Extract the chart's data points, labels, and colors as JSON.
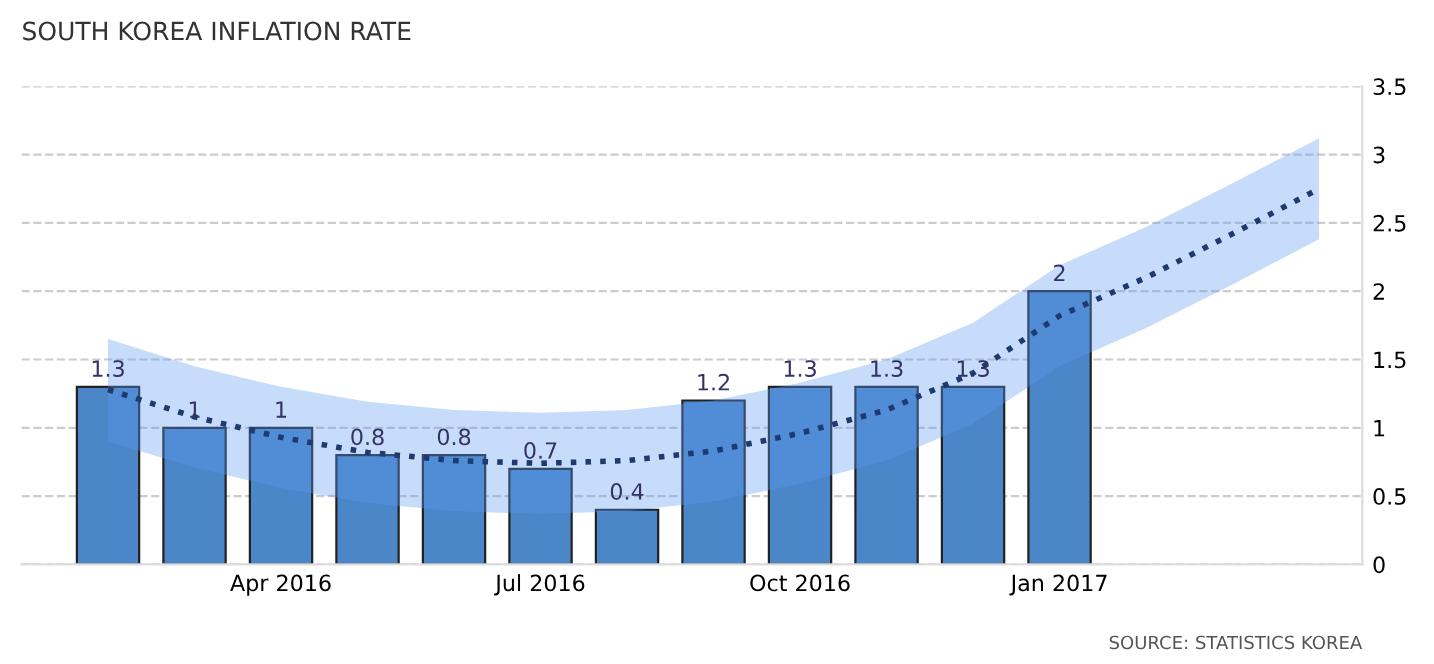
{
  "chart_data": {
    "type": "bar",
    "title": "SOUTH KOREA INFLATION RATE",
    "categories": [
      null,
      null,
      "Apr 2016",
      null,
      null,
      "Jul 2016",
      null,
      null,
      "Oct 2016",
      null,
      null,
      "Jan 2017",
      null,
      null,
      null
    ],
    "series": [
      {
        "color": "#4a86c8",
        "values": [
          1.3,
          1,
          1,
          0.8,
          0.8,
          0.7,
          0.4,
          1.2,
          1.3,
          1.3,
          1.3,
          2,
          null,
          null,
          null
        ],
        "value_labels": [
          "1.3",
          "1",
          "1",
          "0.8",
          "0.8",
          "0.7",
          "0.4",
          "1.2",
          "1.3",
          "1.3",
          "1.3",
          "2",
          null,
          null,
          null
        ]
      },
      {
        "type": "line",
        "color": "#1f3a6e",
        "line_style": "dotted",
        "values": [
          1.28,
          1.08,
          0.93,
          0.82,
          0.76,
          0.74,
          0.76,
          0.83,
          0.96,
          1.13,
          1.4,
          1.82,
          2.1,
          2.42,
          2.75
        ],
        "lower": [
          0.9,
          0.71,
          0.56,
          0.45,
          0.39,
          0.37,
          0.39,
          0.46,
          0.59,
          0.76,
          1.03,
          1.45,
          1.73,
          2.05,
          2.38
        ],
        "upper": [
          1.65,
          1.45,
          1.3,
          1.19,
          1.13,
          1.11,
          1.13,
          1.2,
          1.33,
          1.5,
          1.77,
          2.19,
          2.47,
          2.79,
          3.12
        ]
      }
    ],
    "ylim": [
      0,
      3.5
    ],
    "yticks": [
      0,
      0.5,
      1,
      1.5,
      2,
      2.5,
      3,
      3.5
    ],
    "grid": "y",
    "annotations": [
      "SOURCE: STATISTICS KOREA"
    ]
  }
}
